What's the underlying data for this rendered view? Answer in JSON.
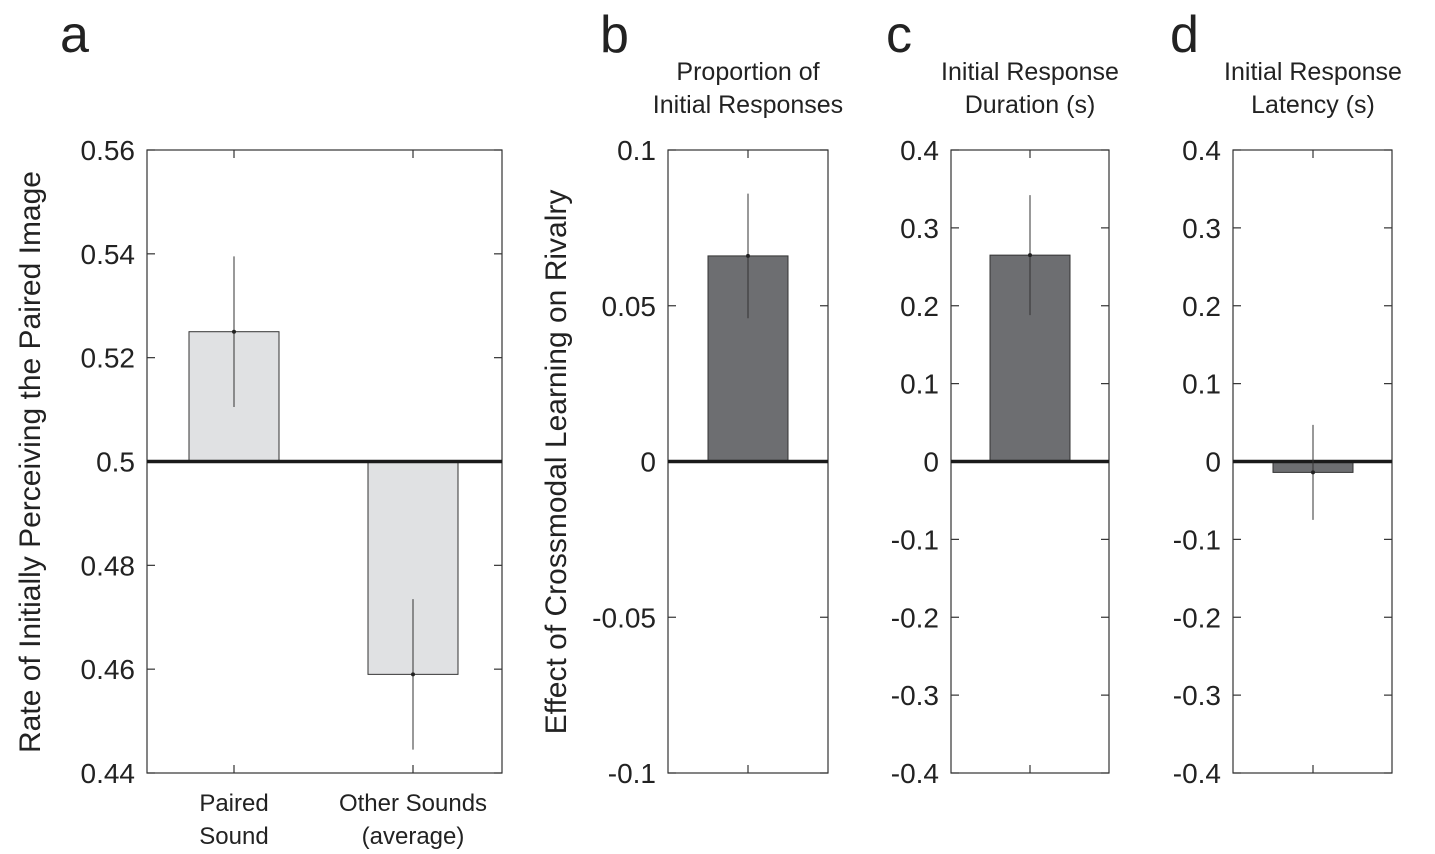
{
  "chart_data": [
    {
      "panel": "a",
      "type": "bar",
      "title": "",
      "ylabel": "Rate of Initially Perceiving the Paired Image",
      "categories": [
        "Paired Sound",
        "Other Sounds (average)"
      ],
      "category_lines": [
        [
          "Paired",
          "Sound"
        ],
        [
          "Other Sounds",
          "(average)"
        ]
      ],
      "values": [
        0.525,
        0.459
      ],
      "errors": [
        0.0145,
        0.0145
      ],
      "ylim": [
        0.44,
        0.56
      ],
      "yticks": [
        0.44,
        0.46,
        0.48,
        0.5,
        0.52,
        0.54,
        0.56
      ],
      "ytick_labels": [
        "0.44",
        "0.46",
        "0.48",
        "0.5",
        "0.52",
        "0.54",
        "0.56"
      ],
      "reference_line": 0.5,
      "bar_color": "#e0e1e3"
    },
    {
      "panel": "b",
      "type": "bar",
      "title_lines": [
        "Proportion of",
        "Initial Responses"
      ],
      "categories": [
        ""
      ],
      "values": [
        0.066
      ],
      "errors": [
        0.02
      ],
      "ylim": [
        -0.1,
        0.1
      ],
      "yticks": [
        -0.1,
        -0.05,
        0,
        0.05,
        0.1
      ],
      "ytick_labels": [
        "-0.1",
        "-0.05",
        "0",
        "0.05",
        "0.1"
      ],
      "reference_line": 0,
      "bar_color": "#6d6e71"
    },
    {
      "panel": "c",
      "type": "bar",
      "title_lines": [
        "Initial Response",
        "Duration (s)"
      ],
      "categories": [
        ""
      ],
      "values": [
        0.265
      ],
      "errors": [
        0.077
      ],
      "ylim": [
        -0.4,
        0.4
      ],
      "yticks": [
        -0.4,
        -0.3,
        -0.2,
        -0.1,
        0,
        0.1,
        0.2,
        0.3,
        0.4
      ],
      "ytick_labels": [
        "-0.4",
        "-0.3",
        "-0.2",
        "-0.1",
        "0",
        "0.1",
        "0.2",
        "0.3",
        "0.4"
      ],
      "reference_line": 0,
      "bar_color": "#6d6e71"
    },
    {
      "panel": "d",
      "type": "bar",
      "title_lines": [
        "Initial Response",
        "Latency (s)"
      ],
      "categories": [
        ""
      ],
      "values": [
        -0.014
      ],
      "errors": [
        0.061
      ],
      "ylim": [
        -0.4,
        0.4
      ],
      "yticks": [
        -0.4,
        -0.3,
        -0.2,
        -0.1,
        0,
        0.1,
        0.2,
        0.3,
        0.4
      ],
      "ytick_labels": [
        "-0.4",
        "-0.3",
        "-0.2",
        "-0.1",
        "0",
        "0.1",
        "0.2",
        "0.3",
        "0.4"
      ],
      "reference_line": 0,
      "bar_color": "#6d6e71"
    }
  ],
  "shared_ylabel": "Effect of Crossmodal Learning on Rivalry"
}
